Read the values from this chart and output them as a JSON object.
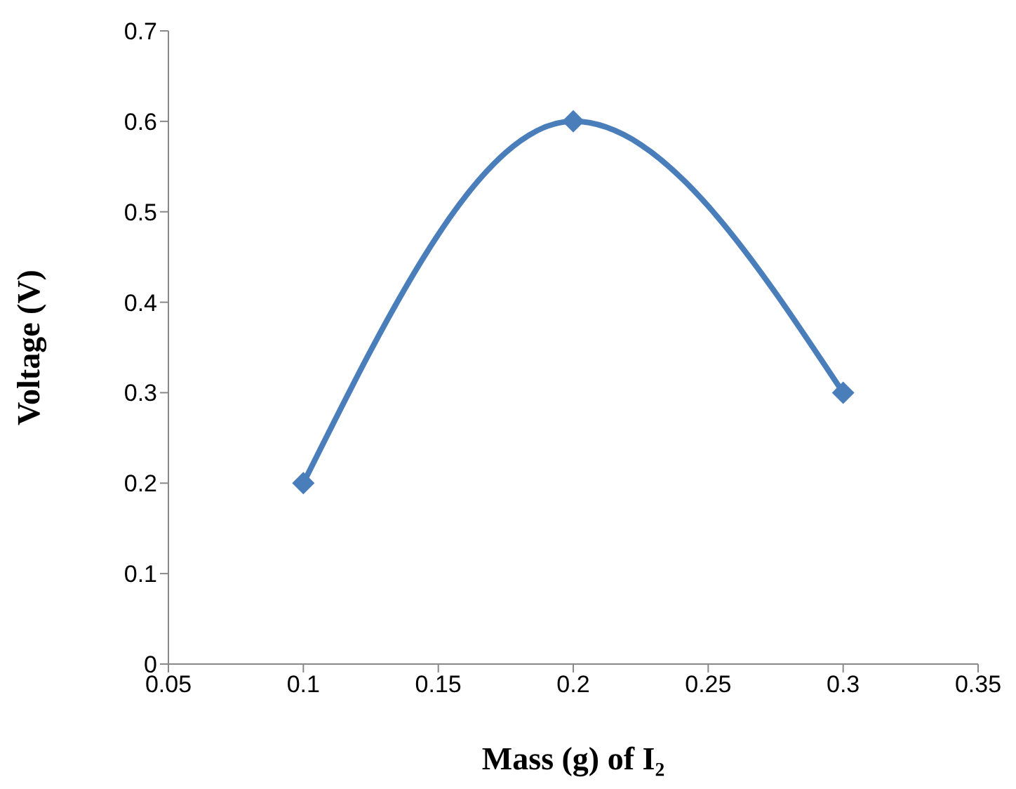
{
  "chart_data": {
    "type": "line",
    "xlabel": "Mass (g) of I₂",
    "ylabel": "Voltage (V)",
    "x": [
      0.1,
      0.2,
      0.3
    ],
    "series": [
      {
        "color": "#4a7ebb",
        "values": [
          0.2,
          0.6,
          0.3
        ]
      }
    ],
    "xlim": [
      0.05,
      0.35
    ],
    "xticks": [
      0.05,
      0.1,
      0.15,
      0.2,
      0.25,
      0.3,
      0.35
    ],
    "ylim": [
      0,
      0.7
    ],
    "yticks": [
      0,
      0.1,
      0.2,
      0.3,
      0.4,
      0.5,
      0.6,
      0.7
    ],
    "marker": "diamond",
    "line_style": "solid",
    "legend": false
  }
}
